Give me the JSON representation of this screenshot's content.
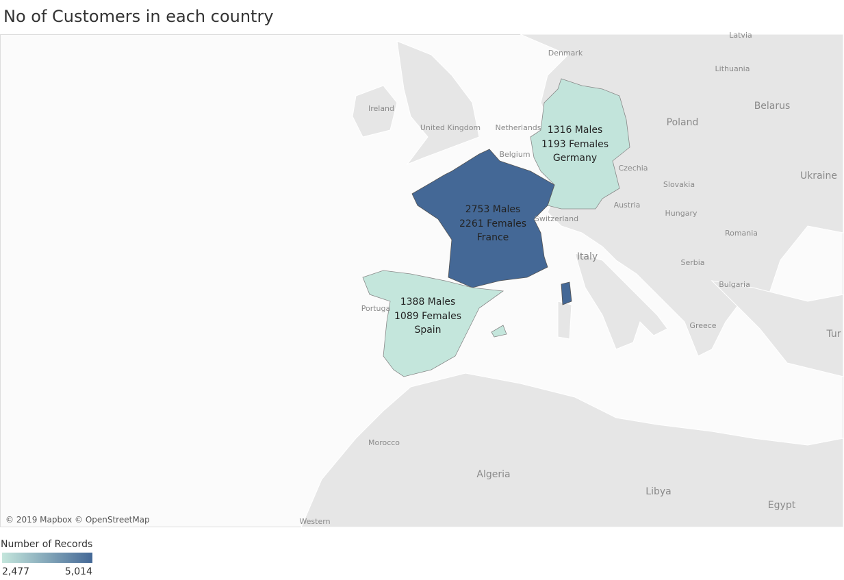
{
  "title": "No of Customers in each country",
  "map": {
    "regions": [
      {
        "name": "Germany",
        "males": {
          "value": 1316,
          "label": "1316 Males"
        },
        "females": {
          "value": 1193,
          "label": "1193 Females"
        }
      },
      {
        "name": "France",
        "males": {
          "value": 2753,
          "label": "2753 Males"
        },
        "females": {
          "value": 2261,
          "label": "2261 Females"
        }
      },
      {
        "name": "Spain",
        "males": {
          "value": 1388,
          "label": "1388 Males"
        },
        "females": {
          "value": 1089,
          "label": "1089 Females"
        }
      }
    ],
    "place_labels": [
      "Latvia",
      "Denmark",
      "Lithuania",
      "Ireland",
      "United Kingdom",
      "Netherlands",
      "Belgium",
      "Poland",
      "Belarus",
      "Ukraine",
      "Czechia",
      "Slovakia",
      "Austria",
      "Switzerland",
      "Hungary",
      "Romania",
      "Italy",
      "Serbia",
      "Bulgaria",
      "Greece",
      "Tur",
      "Portuga",
      "Morocco",
      "Algeria",
      "Libya",
      "Egypt",
      "Western"
    ],
    "attribution": "© 2019 Mapbox © OpenStreetMap"
  },
  "legend": {
    "title": "Number of Records",
    "colors": [
      "#c4e6dc",
      "#446896"
    ],
    "range": [
      {
        "value": 2477,
        "label": "2,477"
      },
      {
        "value": 5014,
        "label": "5,014"
      }
    ]
  }
}
